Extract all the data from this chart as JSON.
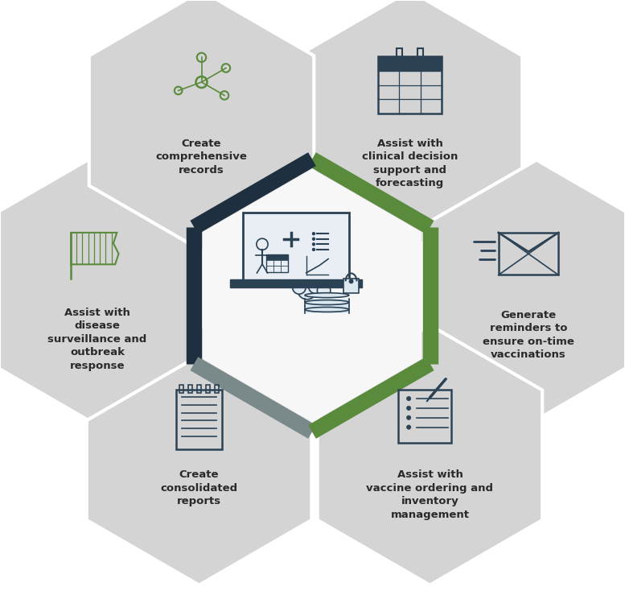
{
  "bg_color": "#ffffff",
  "sat_hex_color": "#d4d4d4",
  "sat_hex_edge": "#ffffff",
  "center_hex_fill": "#f8f8f8",
  "icon_color_dark": "#2b4255",
  "icon_color_green": "#5a8a3c",
  "icon_color_gray": "#5a6a7a",
  "text_color": "#2a2a2a",
  "font_size": 9.5,
  "edge_green": "#5a8a3c",
  "edge_navy": "#1e3040",
  "edge_gray": "#7a8a8a",
  "satellite_labels": [
    "Assist with\nclinical decision\nsupport and\nforecasting",
    "Generate\nreminders to\nensure on-time\nvaccinations",
    "Assist with\nvaccine ordering and\ninventory\nmanagement",
    "Create\nconsolidated\nreports",
    "Assist with\ndisease\nsurveillance and\noutbreak\nresponse",
    "Create\ncomprehensive\nrecords"
  ]
}
